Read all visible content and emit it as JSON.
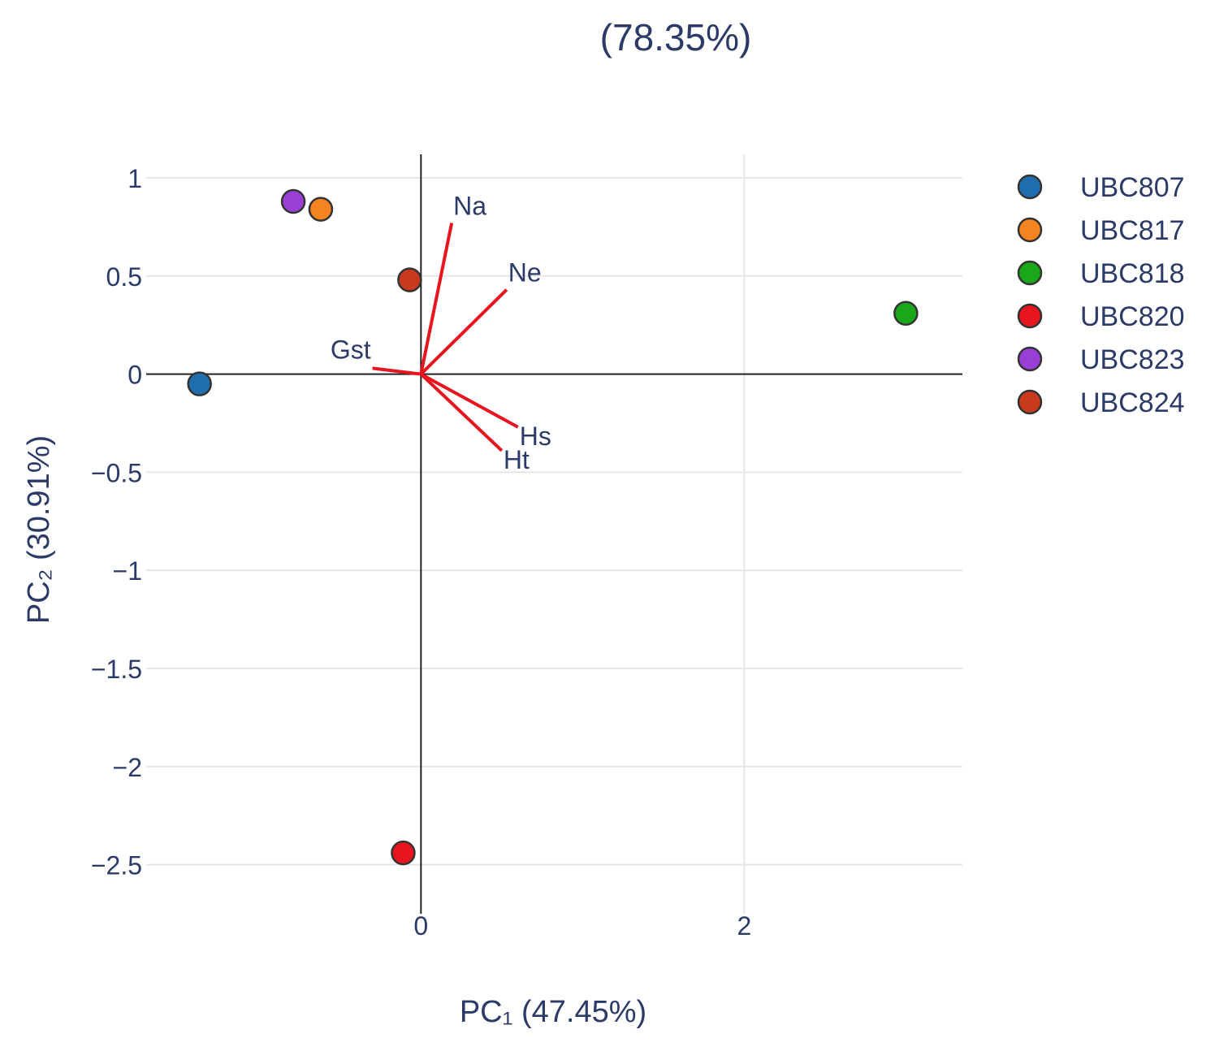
{
  "chart_data": {
    "type": "scatter",
    "title": "(78.35%)",
    "xlabel": "PC₁ (47.45%)",
    "ylabel": "PC₂ (30.91%)",
    "xlim": [
      -1.7,
      3.35
    ],
    "ylim": [
      -2.75,
      1.12
    ],
    "x_ticks": [
      0,
      2
    ],
    "x_tick_labels": [
      "0",
      "2"
    ],
    "y_ticks": [
      1,
      0.5,
      0,
      -0.5,
      -1,
      -1.5,
      -2,
      -2.5
    ],
    "y_tick_labels": [
      "1",
      "0.5",
      "0",
      "−0.5",
      "−1",
      "−1.5",
      "−2",
      "−2.5"
    ],
    "grid": true,
    "legend_position": "right",
    "series": [
      {
        "name": "UBC807",
        "color": "#1f6fb0",
        "x": -1.37,
        "y": -0.05
      },
      {
        "name": "UBC817",
        "color": "#f58420",
        "x": -0.62,
        "y": 0.84
      },
      {
        "name": "UBC818",
        "color": "#1aa81a",
        "x": 3.0,
        "y": 0.31
      },
      {
        "name": "UBC820",
        "color": "#e8141e",
        "x": -0.11,
        "y": -2.44
      },
      {
        "name": "UBC823",
        "color": "#9a3fd6",
        "x": -0.79,
        "y": 0.88
      },
      {
        "name": "UBC824",
        "color": "#c9391d",
        "x": -0.07,
        "y": 0.48
      }
    ],
    "loadings": [
      {
        "label": "Na",
        "x": 0.19,
        "y": 0.77
      },
      {
        "label": "Ne",
        "x": 0.53,
        "y": 0.43
      },
      {
        "label": "Gst",
        "x": -0.3,
        "y": 0.03
      },
      {
        "label": "Hs",
        "x": 0.6,
        "y": -0.27
      },
      {
        "label": "Ht",
        "x": 0.5,
        "y": -0.39
      }
    ],
    "colors": {
      "axis_text": "#2b3a67",
      "grid": "#e6e6e6",
      "zero_line": "#222222",
      "loading_line": "#e8141e"
    }
  }
}
